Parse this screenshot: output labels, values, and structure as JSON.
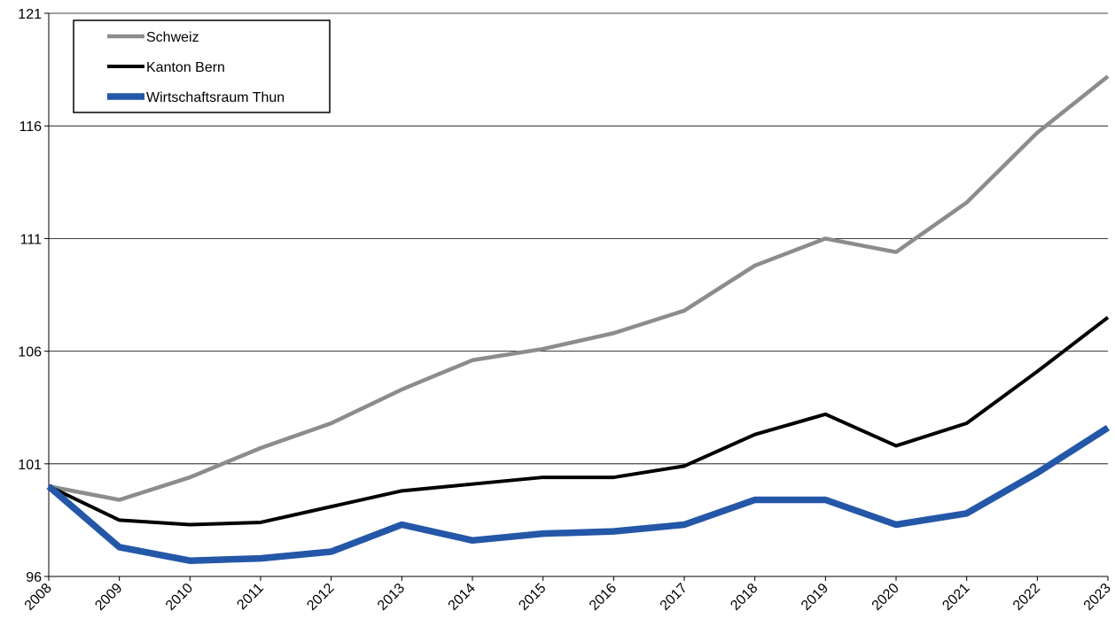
{
  "chart_data": {
    "type": "line",
    "title": "",
    "xlabel": "",
    "ylabel": "",
    "categories": [
      "2008",
      "2009",
      "2010",
      "2011",
      "2012",
      "2013",
      "2014",
      "2015",
      "2016",
      "2017",
      "2018",
      "2019",
      "2020",
      "2021",
      "2022",
      "2023"
    ],
    "ylim": [
      96,
      121
    ],
    "yticks": [
      "96",
      "101",
      "106",
      "111",
      "116",
      "121"
    ],
    "grid": "horizontal",
    "legend_position": "top-left",
    "series": [
      {
        "name": "Schweiz",
        "color": "#8c8c8c",
        "values": [
          100.0,
          99.4,
          100.4,
          101.7,
          102.8,
          104.3,
          105.6,
          106.1,
          106.8,
          107.8,
          109.8,
          111.0,
          110.4,
          112.6,
          115.7,
          118.2
        ]
      },
      {
        "name": "Kanton Bern",
        "color": "#000000",
        "values": [
          100.0,
          98.5,
          98.3,
          98.4,
          99.1,
          99.8,
          100.1,
          100.4,
          100.4,
          100.9,
          102.3,
          103.2,
          101.8,
          102.8,
          105.1,
          107.5
        ]
      },
      {
        "name": "Wirtschaftsraum Thun",
        "color": "#2457a8",
        "values": [
          100.0,
          97.3,
          96.7,
          96.8,
          97.1,
          98.3,
          97.6,
          97.9,
          98.0,
          98.3,
          99.4,
          99.4,
          98.3,
          98.8,
          100.6,
          102.6
        ]
      }
    ]
  }
}
